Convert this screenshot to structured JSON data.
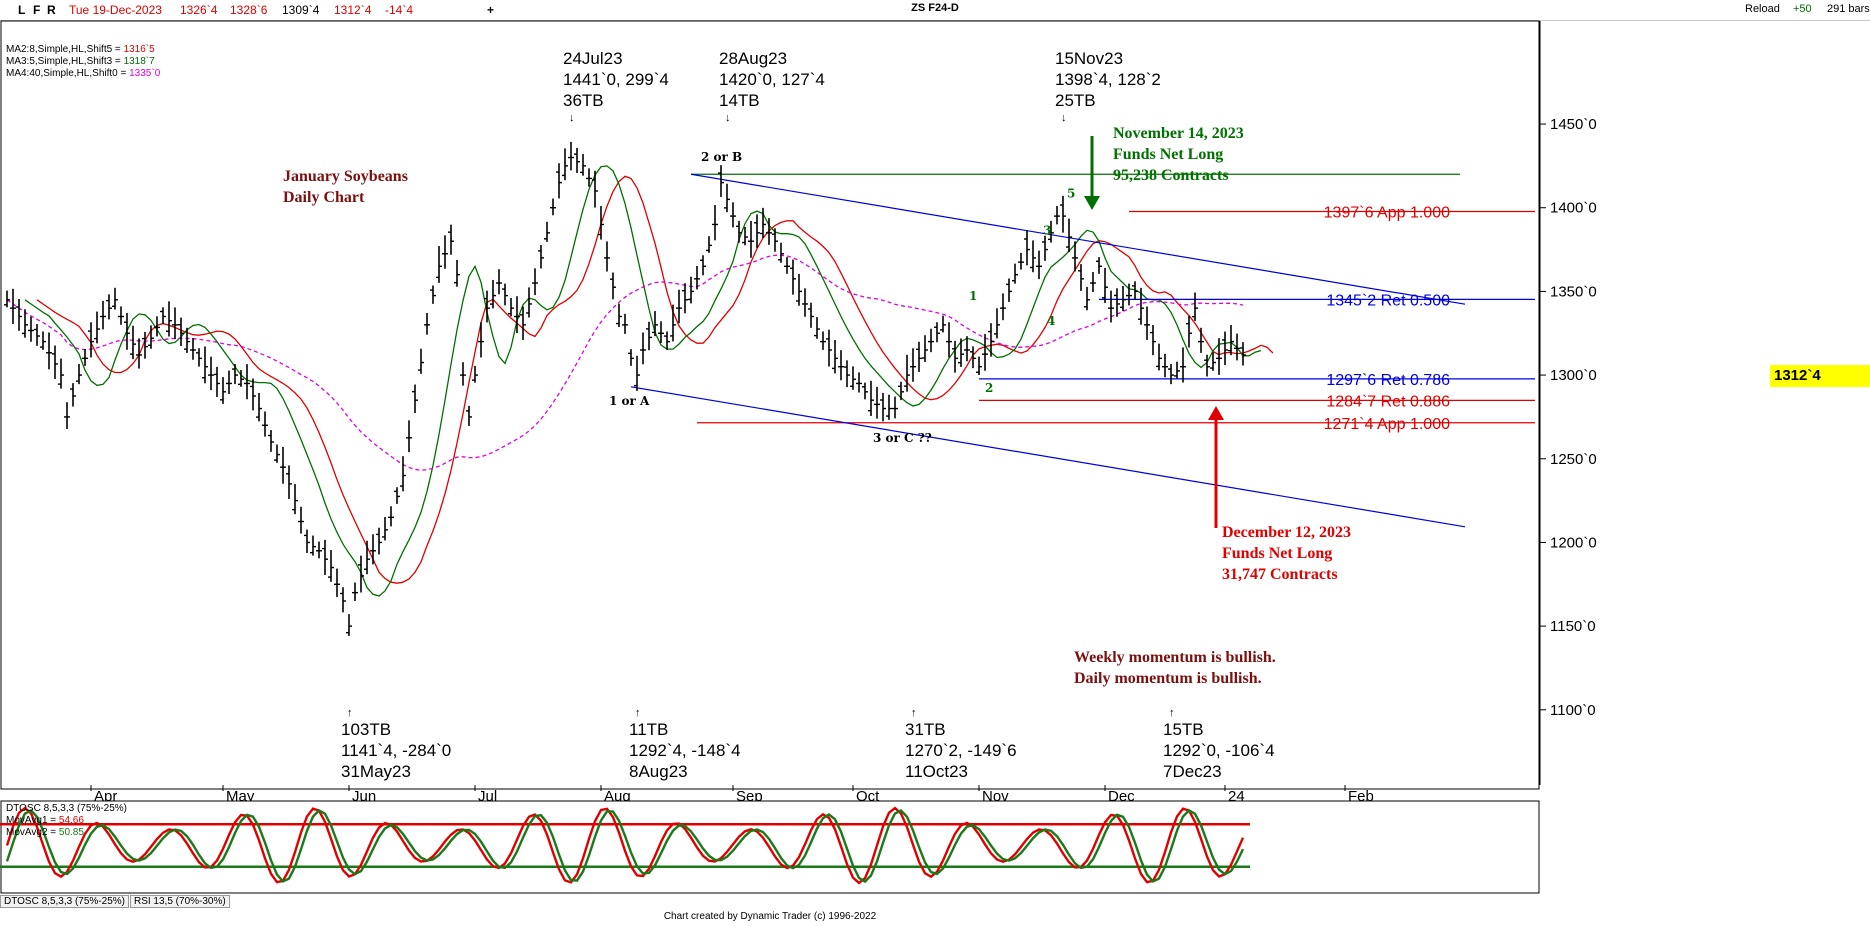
{
  "toolbar": {
    "buttons": [
      "L",
      "F",
      "R"
    ],
    "date": "Tue 19-Dec-2023",
    "quote": [
      "1326`4",
      "1328`6",
      "1309`4",
      "1312`4",
      "-14`4"
    ],
    "plus": "+",
    "title": "ZS F24-D",
    "reload": "Reload",
    "reload_value": "+50",
    "bars": "291 bars"
  },
  "indicators": [
    {
      "label": "MA2:8,Simple,HL,Shift5 = ",
      "value": "1316`5",
      "color": "#e00000"
    },
    {
      "label": "MA3:5,Simple,HL,Shift3 = ",
      "value": "1318`7",
      "color": "#007000"
    },
    {
      "label": "MA4:40,Simple,HL,Shift0 = ",
      "value": "1335`0",
      "color": "#e000e0"
    }
  ],
  "chart_data": {
    "type": "ohlc",
    "title_lines": [
      "January Soybeans",
      "Daily Chart"
    ],
    "y_axis": {
      "ticks": [
        "1100`0",
        "1150`0",
        "1200`0",
        "1250`0",
        "1300`0",
        "1350`0",
        "1400`0",
        "1450`0"
      ],
      "tick_values": [
        1100,
        1150,
        1200,
        1250,
        1300,
        1350,
        1400,
        1450
      ],
      "range": [
        1070,
        1505
      ]
    },
    "x_axis": {
      "ticks": [
        "Apr",
        "May",
        "Jun",
        "Jul",
        "Aug",
        "Sep",
        "Oct",
        "Nov",
        "Dec",
        "24",
        "Feb"
      ]
    },
    "last_price": "1312`4",
    "close_series": [
      [
        0,
        1345
      ],
      [
        3,
        1330
      ],
      [
        6,
        1320
      ],
      [
        9,
        1300
      ],
      [
        10,
        1275
      ],
      [
        12,
        1300
      ],
      [
        14,
        1320
      ],
      [
        16,
        1335
      ],
      [
        18,
        1345
      ],
      [
        20,
        1325
      ],
      [
        22,
        1312
      ],
      [
        24,
        1322
      ],
      [
        26,
        1335
      ],
      [
        28,
        1330
      ],
      [
        30,
        1320
      ],
      [
        32,
        1310
      ],
      [
        34,
        1300
      ],
      [
        36,
        1290
      ],
      [
        38,
        1300
      ],
      [
        40,
        1295
      ],
      [
        42,
        1280
      ],
      [
        44,
        1260
      ],
      [
        46,
        1245
      ],
      [
        48,
        1225
      ],
      [
        50,
        1200
      ],
      [
        52,
        1195
      ],
      [
        54,
        1185
      ],
      [
        56,
        1165
      ],
      [
        57,
        1150
      ],
      [
        58,
        1170
      ],
      [
        60,
        1190
      ],
      [
        62,
        1200
      ],
      [
        64,
        1215
      ],
      [
        66,
        1240
      ],
      [
        68,
        1285
      ],
      [
        70,
        1330
      ],
      [
        72,
        1365
      ],
      [
        74,
        1380
      ],
      [
        75,
        1360
      ],
      [
        76,
        1300
      ],
      [
        77,
        1275
      ],
      [
        78,
        1300
      ],
      [
        80,
        1340
      ],
      [
        82,
        1355
      ],
      [
        84,
        1340
      ],
      [
        86,
        1330
      ],
      [
        88,
        1355
      ],
      [
        90,
        1385
      ],
      [
        92,
        1415
      ],
      [
        93,
        1425
      ],
      [
        94,
        1430
      ],
      [
        96,
        1425
      ],
      [
        98,
        1410
      ],
      [
        100,
        1370
      ],
      [
        102,
        1335
      ],
      [
        103,
        1330
      ],
      [
        104,
        1310
      ],
      [
        105,
        1300
      ],
      [
        106,
        1315
      ],
      [
        108,
        1330
      ],
      [
        110,
        1320
      ],
      [
        112,
        1340
      ],
      [
        114,
        1350
      ],
      [
        116,
        1365
      ],
      [
        118,
        1390
      ],
      [
        119,
        1415
      ],
      [
        120,
        1405
      ],
      [
        121,
        1395
      ],
      [
        122,
        1385
      ],
      [
        124,
        1380
      ],
      [
        126,
        1390
      ],
      [
        128,
        1380
      ],
      [
        130,
        1365
      ],
      [
        132,
        1350
      ],
      [
        134,
        1335
      ],
      [
        136,
        1320
      ],
      [
        138,
        1310
      ],
      [
        140,
        1300
      ],
      [
        142,
        1295
      ],
      [
        144,
        1285
      ],
      [
        146,
        1280
      ],
      [
        148,
        1280
      ],
      [
        150,
        1300
      ],
      [
        152,
        1310
      ],
      [
        154,
        1320
      ],
      [
        156,
        1330
      ],
      [
        158,
        1310
      ],
      [
        160,
        1315
      ],
      [
        162,
        1305
      ],
      [
        164,
        1320
      ],
      [
        166,
        1340
      ],
      [
        168,
        1360
      ],
      [
        170,
        1375
      ],
      [
        172,
        1365
      ],
      [
        174,
        1385
      ],
      [
        175,
        1395
      ],
      [
        176,
        1395
      ],
      [
        178,
        1370
      ],
      [
        180,
        1345
      ],
      [
        182,
        1365
      ],
      [
        184,
        1340
      ],
      [
        186,
        1345
      ],
      [
        188,
        1350
      ],
      [
        190,
        1330
      ],
      [
        192,
        1310
      ],
      [
        194,
        1300
      ],
      [
        196,
        1305
      ],
      [
        197,
        1325
      ],
      [
        198,
        1340
      ],
      [
        199,
        1320
      ],
      [
        200,
        1305
      ],
      [
        202,
        1310
      ],
      [
        204,
        1320
      ],
      [
        206,
        1312
      ]
    ],
    "moving_averages": [
      {
        "name": "MA2:8",
        "color": "#e00000"
      },
      {
        "name": "MA3:5",
        "color": "#007000"
      },
      {
        "name": "MA4:40",
        "color": "#e000e0"
      }
    ],
    "price_levels": [
      {
        "text": "1397`6 App 1.000",
        "value": 1397.75,
        "color": "#e00000"
      },
      {
        "text": "1345`2 Ret 0.500",
        "value": 1345.25,
        "color": "#0000e0"
      },
      {
        "text": "1297`6 Ret 0.786",
        "value": 1297.75,
        "color": "#0000e0"
      },
      {
        "text": "1284`7 Ret 0.886",
        "value": 1284.875,
        "color": "#e00000"
      },
      {
        "text": "1271`4 App 1.000",
        "value": 1271.5,
        "color": "#e00000"
      }
    ],
    "green_level": 1420,
    "channel": {
      "upper": [
        [
          114,
          1420
        ],
        [
          217,
          1358
        ]
      ],
      "lower": [
        [
          104,
          1293
        ],
        [
          217,
          1225
        ]
      ]
    },
    "swing_highs": [
      {
        "lines": [
          "24Jul23",
          "1441`0, 299`4",
          "36TB"
        ],
        "bar": 93
      },
      {
        "lines": [
          "28Aug23",
          "1420`0, 127`4",
          "14TB"
        ],
        "bar": 119
      },
      {
        "lines": [
          "15Nov23",
          "1398`4, 128`2",
          "25TB"
        ],
        "bar": 175
      }
    ],
    "swing_lows": [
      {
        "lines": [
          "103TB",
          "1141`4, -284`0",
          "31May23"
        ],
        "bar": 56
      },
      {
        "lines": [
          "11TB",
          "1292`4, -148`4",
          "8Aug23"
        ],
        "bar": 104
      },
      {
        "lines": [
          "31TB",
          "1270`2, -149`6",
          "11Oct23"
        ],
        "bar": 150
      },
      {
        "lines": [
          "15TB",
          "1292`0, -106`4",
          "7Dec23"
        ],
        "bar": 193
      }
    ],
    "wave_labels": [
      "2 or B",
      "1 or A",
      "3 or C  ??",
      "1",
      "2",
      "3",
      "4",
      "5"
    ],
    "annotations": {
      "nov": [
        "November 14, 2023",
        "Funds Net Long",
        "95,238 Contracts"
      ],
      "dec": [
        "December 12, 2023",
        "Funds Net Long",
        "31,747 Contracts"
      ],
      "momentum": [
        "Weekly momentum is bullish.",
        "Daily momentum is bullish."
      ]
    },
    "oscillator": {
      "title": "DTOSC 8,5,3,3 (75%-25%)",
      "ma1": {
        "label": "MovAvg1 = ",
        "value": "54.66"
      },
      "ma2": {
        "label": "MovAvg2 = ",
        "value": "50.85"
      },
      "upper": 75,
      "lower": 25
    }
  },
  "tabs": [
    "DTOSC 8,5,3,3 (75%-25%)",
    "RSI 13,5 (70%-30%)"
  ],
  "footer": "Chart created by Dynamic Trader  (c) 1996-2022",
  "colors": {
    "red": "#e00000",
    "green": "#007000",
    "blue": "#0000e0",
    "magenta": "#e000e0",
    "brown": "#7a1010",
    "osc_green": "#1a7a1a"
  }
}
